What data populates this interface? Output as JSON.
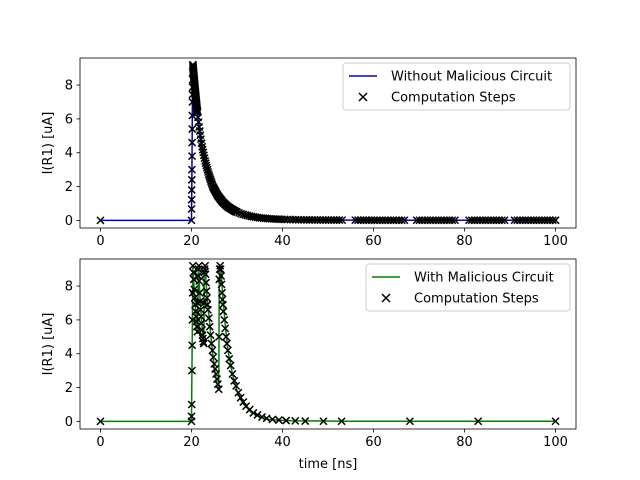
{
  "chart_data": [
    {
      "type": "line",
      "ylabel": "I(R1) [uA]",
      "xlabel": "",
      "xlim": [
        -4.5,
        104.5
      ],
      "ylim": [
        -0.45,
        9.6
      ],
      "xticks": [
        0,
        20,
        40,
        60,
        80,
        100
      ],
      "yticks": [
        0,
        2,
        4,
        6,
        8
      ],
      "legend_position": "upper-right",
      "series": [
        {
          "name": "Without Malicious Circuit",
          "kind": "line",
          "color": "#0000bf",
          "x": [
            0,
            20,
            20.01,
            20.05,
            20.1,
            20.15,
            20.2,
            20.3,
            20.5,
            20.8,
            21.2,
            21.7,
            22.3,
            23,
            23.8,
            24.7,
            25.7,
            26.8,
            28,
            29.5,
            31,
            33,
            35,
            37.5,
            40,
            45,
            50,
            60,
            70,
            80,
            90,
            100
          ],
          "y": [
            0,
            0,
            0.4,
            1.5,
            3,
            5,
            7,
            9.2,
            8.6,
            7.7,
            6.6,
            5.5,
            4.4,
            3.5,
            2.7,
            2.0,
            1.5,
            1.1,
            0.8,
            0.55,
            0.38,
            0.24,
            0.15,
            0.09,
            0.06,
            0.03,
            0.02,
            0.01,
            0.01,
            0.01,
            0.01,
            0.01
          ]
        },
        {
          "name": "Computation Steps",
          "kind": "scatter",
          "marker": "x",
          "color": "#000000",
          "source": "dense sampling along the line"
        }
      ]
    },
    {
      "type": "line",
      "ylabel": "I(R1) [uA]",
      "xlabel": "time [ns]",
      "xlim": [
        -4.5,
        104.5
      ],
      "ylim": [
        -0.45,
        9.6
      ],
      "xticks": [
        0,
        20,
        40,
        60,
        80,
        100
      ],
      "yticks": [
        0,
        2,
        4,
        6,
        8
      ],
      "legend_position": "upper-right",
      "series": [
        {
          "name": "With Malicious Circuit",
          "kind": "line",
          "color": "#008000",
          "x": [
            0,
            20,
            20.01,
            20.1,
            20.2,
            20.3,
            20.6,
            21.0,
            21.3,
            21.5,
            21.6,
            21.8,
            22.2,
            22.7,
            22.8,
            23.0,
            23.4,
            24.0,
            24.5,
            25.0,
            25.5,
            26.0,
            26.1,
            26.4,
            26.7,
            27.0,
            27.5,
            28,
            29,
            30,
            31,
            33,
            35,
            37,
            38,
            40,
            42,
            45,
            49,
            53,
            68,
            83,
            100
          ],
          "y": [
            0,
            0,
            0.3,
            3,
            6,
            9.2,
            7.8,
            6.2,
            5.2,
            8.6,
            9.2,
            7.6,
            6.0,
            4.6,
            8.8,
            9.2,
            7.4,
            5.8,
            4.4,
            3.2,
            2.4,
            1.9,
            8.4,
            9.2,
            8.1,
            7.0,
            5.5,
            4.2,
            2.8,
            1.8,
            1.2,
            0.55,
            0.25,
            0.12,
            0.09,
            0.06,
            0.04,
            0.03,
            0.02,
            0.01,
            0.01,
            0.01,
            0.01
          ]
        },
        {
          "name": "Computation Steps",
          "kind": "scatter",
          "marker": "x",
          "color": "#000000",
          "x": [
            0,
            20,
            20.02,
            20.05,
            20.1,
            20.15,
            20.2,
            20.25,
            20.3,
            20.4,
            20.5,
            20.6,
            20.7,
            20.8,
            20.9,
            21.0,
            21.1,
            21.2,
            21.3,
            21.4,
            21.5,
            21.55,
            21.6,
            21.7,
            21.8,
            21.9,
            22.0,
            22.1,
            22.2,
            22.3,
            22.4,
            22.5,
            22.6,
            22.7,
            22.75,
            22.8,
            22.9,
            23.0,
            23.1,
            23.2,
            23.3,
            23.4,
            23.5,
            23.6,
            23.8,
            24.0,
            24.2,
            24.4,
            24.6,
            24.8,
            25.0,
            25.2,
            25.4,
            25.6,
            25.8,
            26.0,
            26.05,
            26.1,
            26.2,
            26.3,
            26.4,
            26.5,
            26.6,
            26.7,
            26.8,
            26.9,
            27.0,
            27.2,
            27.4,
            27.6,
            27.8,
            28.0,
            28.3,
            28.6,
            29.0,
            29.4,
            29.8,
            30.3,
            30.8,
            31.4,
            32.0,
            32.8,
            33.6,
            34.5,
            35.5,
            36.5,
            37.8,
            39.2,
            40.8,
            42.8,
            45.0,
            49.0,
            53.0,
            68.0,
            83.0,
            100.0
          ],
          "y": [
            0,
            0,
            0.3,
            1.0,
            3.0,
            4.5,
            6.0,
            7.6,
            9.2,
            8.8,
            8.4,
            7.8,
            7.3,
            6.9,
            6.5,
            6.2,
            5.9,
            5.6,
            5.3,
            7.0,
            8.6,
            9.0,
            9.2,
            8.3,
            7.6,
            7.1,
            6.6,
            6.2,
            5.8,
            5.4,
            5.1,
            4.9,
            4.7,
            4.6,
            7.0,
            8.8,
            9.0,
            9.2,
            8.7,
            8.2,
            7.7,
            7.3,
            6.9,
            6.6,
            6.1,
            5.6,
            5.1,
            4.6,
            4.2,
            3.8,
            3.4,
            3.1,
            2.8,
            2.5,
            2.2,
            1.9,
            5.0,
            8.4,
            9.0,
            9.2,
            9.0,
            8.6,
            8.1,
            7.6,
            7.2,
            6.9,
            6.5,
            6.0,
            5.5,
            5.0,
            4.6,
            4.2,
            3.7,
            3.3,
            2.8,
            2.4,
            2.1,
            1.7,
            1.4,
            1.15,
            0.9,
            0.7,
            0.5,
            0.38,
            0.26,
            0.18,
            0.12,
            0.08,
            0.05,
            0.03,
            0.02,
            0.01,
            0.01,
            0.01,
            0.01,
            0.01
          ]
        }
      ]
    }
  ]
}
